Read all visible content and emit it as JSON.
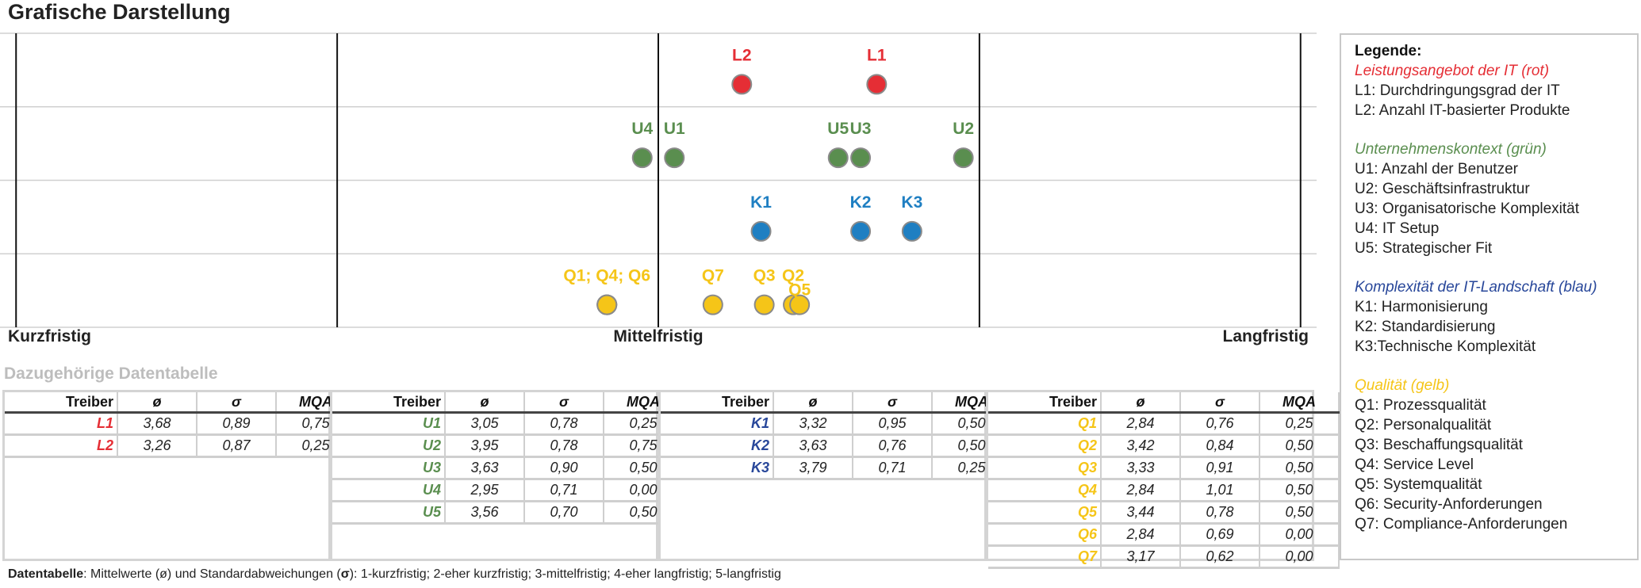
{
  "title": "Grafische Darstellung",
  "subtitle": "Dazugehörige Datentabelle",
  "colors": {
    "red": "#e52e35",
    "green": "#5a8e4f",
    "blue": "#1f7fc2",
    "yellow": "#f5c518",
    "navy": "#28479a",
    "grid": "#d0d0d0"
  },
  "chart_data": {
    "type": "scatter",
    "xlim": [
      0.95,
      5.05
    ],
    "x_ticks": [
      {
        "value": 1,
        "label": "Kurzfristig"
      },
      {
        "value": 3,
        "label": "Mittelfristig"
      },
      {
        "value": 5,
        "label": "Langfristig"
      }
    ],
    "rows": [
      "L",
      "U",
      "K",
      "Q"
    ],
    "series": [
      {
        "row": "L",
        "color": "#e52e35",
        "points": [
          {
            "label": "L1",
            "x": 3.68
          },
          {
            "label": "L2",
            "x": 3.26
          }
        ]
      },
      {
        "row": "U",
        "color": "#5a8e4f",
        "points": [
          {
            "label": "U1",
            "x": 3.05
          },
          {
            "label": "U2",
            "x": 3.95
          },
          {
            "label": "U3",
            "x": 3.63
          },
          {
            "label": "U4",
            "x": 2.95
          },
          {
            "label": "U5",
            "x": 3.56
          }
        ]
      },
      {
        "row": "K",
        "color": "#1f7fc2",
        "points": [
          {
            "label": "K1",
            "x": 3.32
          },
          {
            "label": "K2",
            "x": 3.63
          },
          {
            "label": "K3",
            "x": 3.79
          }
        ]
      },
      {
        "row": "Q",
        "color": "#f5c518",
        "points": [
          {
            "label": "Q1",
            "x": 2.84
          },
          {
            "label": "Q2",
            "x": 3.42
          },
          {
            "label": "Q3",
            "x": 3.33
          },
          {
            "label": "Q4",
            "x": 2.84
          },
          {
            "label": "Q5",
            "x": 3.44
          },
          {
            "label": "Q6",
            "x": 2.84
          },
          {
            "label": "Q7",
            "x": 3.17
          }
        ]
      }
    ],
    "point_labels": [
      {
        "text": "L2",
        "row": "L",
        "x": 3.26,
        "color": "#e52e35"
      },
      {
        "text": "L1",
        "row": "L",
        "x": 3.68,
        "color": "#e52e35"
      },
      {
        "text": "U4",
        "row": "U",
        "x": 2.95,
        "color": "#5a8e4f"
      },
      {
        "text": "U1",
        "row": "U",
        "x": 3.05,
        "color": "#5a8e4f"
      },
      {
        "text": "U5",
        "row": "U",
        "x": 3.56,
        "color": "#5a8e4f"
      },
      {
        "text": "U3",
        "row": "U",
        "x": 3.63,
        "color": "#5a8e4f"
      },
      {
        "text": "U2",
        "row": "U",
        "x": 3.95,
        "color": "#5a8e4f"
      },
      {
        "text": "K1",
        "row": "K",
        "x": 3.32,
        "color": "#1f7fc2"
      },
      {
        "text": "K2",
        "row": "K",
        "x": 3.63,
        "color": "#1f7fc2"
      },
      {
        "text": "K3",
        "row": "K",
        "x": 3.79,
        "color": "#1f7fc2"
      },
      {
        "text": "Q1; Q4; Q6",
        "row": "Q",
        "x": 2.84,
        "color": "#f5c518"
      },
      {
        "text": "Q7",
        "row": "Q",
        "x": 3.17,
        "color": "#f5c518"
      },
      {
        "text": "Q3",
        "row": "Q",
        "x": 3.33,
        "color": "#f5c518"
      },
      {
        "text": "Q2",
        "row": "Q",
        "x": 3.42,
        "color": "#f5c518"
      },
      {
        "text": "Q5",
        "row": "Q",
        "x": 3.44,
        "color": "#f5c518"
      }
    ]
  },
  "tables": [
    {
      "color": "#e52e35",
      "headers": [
        "Treiber",
        "ø",
        "σ",
        "MQA"
      ],
      "rows": [
        [
          "L1",
          "3,68",
          "0,89",
          "0,75"
        ],
        [
          "L2",
          "3,26",
          "0,87",
          "0,25"
        ]
      ]
    },
    {
      "color": "#5a8e4f",
      "headers": [
        "Treiber",
        "ø",
        "σ",
        "MQA"
      ],
      "rows": [
        [
          "U1",
          "3,05",
          "0,78",
          "0,25"
        ],
        [
          "U2",
          "3,95",
          "0,78",
          "0,75"
        ],
        [
          "U3",
          "3,63",
          "0,90",
          "0,50"
        ],
        [
          "U4",
          "2,95",
          "0,71",
          "0,00"
        ],
        [
          "U5",
          "3,56",
          "0,70",
          "0,50"
        ]
      ]
    },
    {
      "color": "#28479a",
      "headers": [
        "Treiber",
        "ø",
        "σ",
        "MQA"
      ],
      "rows": [
        [
          "K1",
          "3,32",
          "0,95",
          "0,50"
        ],
        [
          "K2",
          "3,63",
          "0,76",
          "0,50"
        ],
        [
          "K3",
          "3,79",
          "0,71",
          "0,25"
        ]
      ]
    },
    {
      "color": "#f5c518",
      "headers": [
        "Treiber",
        "ø",
        "σ",
        "MQA"
      ],
      "rows": [
        [
          "Q1",
          "2,84",
          "0,76",
          "0,25"
        ],
        [
          "Q2",
          "3,42",
          "0,84",
          "0,50"
        ],
        [
          "Q3",
          "3,33",
          "0,91",
          "0,50"
        ],
        [
          "Q4",
          "2,84",
          "1,01",
          "0,50"
        ],
        [
          "Q5",
          "3,44",
          "0,78",
          "0,50"
        ],
        [
          "Q6",
          "2,84",
          "0,69",
          "0,00"
        ],
        [
          "Q7",
          "3,17",
          "0,62",
          "0,00"
        ]
      ]
    }
  ],
  "legend": {
    "title": "Legende:",
    "groups": [
      {
        "name": "Leistungsangebot der IT (rot)",
        "color": "#e52e35",
        "items": [
          "L1: Durchdringungsgrad der IT",
          "L2: Anzahl IT-basierter Produkte"
        ]
      },
      {
        "name": "Unternehmenskontext (grün)",
        "color": "#5a8e4f",
        "items": [
          "U1: Anzahl der Benutzer",
          "U2: Geschäftsinfrastruktur",
          "U3: Organisatorische Komplexität",
          "U4: IT Setup",
          "U5: Strategischer Fit"
        ]
      },
      {
        "name": "Komplexität der IT-Landschaft (blau)",
        "color": "#28479a",
        "items": [
          "K1: Harmonisierung",
          "K2: Standardisierung",
          "K3:Technische Komplexität"
        ]
      },
      {
        "name": "Qualität (gelb)",
        "color": "#f5c518",
        "items": [
          "Q1: Prozessqualität",
          "Q2: Personalqualität",
          "Q3: Beschaffungsqualität",
          "Q4: Service Level",
          "Q5: Systemqualität",
          "Q6: Security-Anforderungen",
          "Q7: Compliance-Anforderungen"
        ]
      }
    ]
  },
  "footnote": {
    "bold": "Datentabelle",
    "text": ": Mittelwerte (ø) und Standardabweichungen (",
    "sigma": "σ",
    "rest": "): 1-kurzfristig; 2-eher kurzfristig; 3-mittelfristig; 4-eher langfristig; 5-langfristig"
  }
}
